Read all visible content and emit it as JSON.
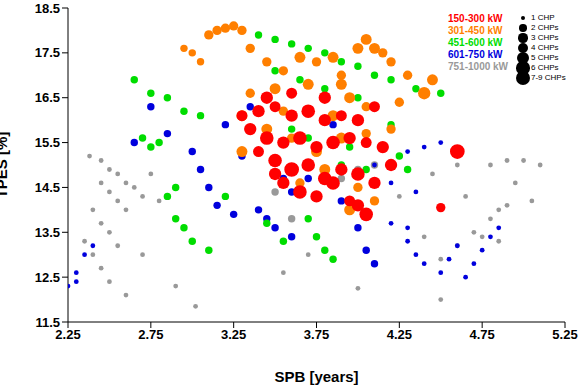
{
  "chart_data": {
    "type": "scatter",
    "x_label": "SPB [years]",
    "y_label": "TPES [%]",
    "xlim": [
      2.25,
      5.25
    ],
    "xticks": [
      2.25,
      2.75,
      3.25,
      3.75,
      4.25,
      4.75,
      5.25
    ],
    "ylim": [
      11.5,
      18.5
    ],
    "yticks": [
      11.5,
      12.5,
      13.5,
      14.5,
      15.5,
      16.5,
      17.5,
      18.5
    ],
    "grid": false,
    "legend": "upper right",
    "size_range": [
      1,
      7
    ],
    "size_legend": [
      {
        "value": 1,
        "label": "1 CHP"
      },
      {
        "value": 2,
        "label": "2 CHPs"
      },
      {
        "value": 3,
        "label": "3 CHPs"
      },
      {
        "value": 4,
        "label": "4 CHPs"
      },
      {
        "value": 5,
        "label": "5 CHPs"
      },
      {
        "value": 6,
        "label": "6 CHPs"
      },
      {
        "value": 7,
        "label": "7-9 CHPs"
      }
    ],
    "series": [
      {
        "name": "150-300 kW",
        "color": "#ff0000",
        "marker": "circle",
        "x": [
          3.3,
          3.4,
          3.5,
          3.6,
          3.7,
          3.8,
          3.9,
          4.0,
          3.35,
          3.45,
          3.55,
          3.65,
          3.75,
          3.85,
          3.95,
          4.05,
          4.15,
          3.5,
          3.6,
          3.7,
          3.8,
          3.9,
          4.0,
          4.1,
          3.55,
          3.65,
          3.75,
          3.85,
          3.95,
          4.0,
          4.05,
          3.5,
          3.4,
          4.2,
          4.5,
          4.6,
          3.6,
          3.8,
          4.1,
          3.45
        ],
        "values": [
          16.1,
          16.2,
          16.3,
          16.1,
          16.2,
          16.0,
          16.1,
          16.0,
          15.8,
          15.6,
          15.5,
          15.6,
          15.4,
          15.5,
          15.6,
          15.5,
          15.4,
          15.1,
          14.9,
          15.0,
          14.7,
          14.9,
          14.8,
          14.6,
          14.6,
          14.4,
          14.3,
          14.6,
          14.2,
          14.1,
          13.9,
          14.8,
          15.3,
          15.0,
          14.05,
          15.3,
          16.6,
          16.5,
          16.3,
          16.5
        ],
        "sizes": [
          4,
          5,
          4,
          5,
          6,
          5,
          4,
          5,
          5,
          6,
          5,
          6,
          5,
          6,
          5,
          4,
          5,
          6,
          7,
          6,
          6,
          5,
          6,
          5,
          5,
          6,
          5,
          6,
          4,
          5,
          6,
          5,
          4,
          5,
          3,
          7,
          4,
          5,
          4,
          5
        ]
      },
      {
        "name": "301-450 kW",
        "color": "#ff7f00",
        "marker": "circle",
        "x": [
          3.1,
          3.15,
          3.2,
          3.25,
          3.3,
          2.95,
          3.0,
          3.05,
          3.35,
          3.45,
          3.55,
          3.65,
          3.75,
          3.85,
          3.9,
          4.05,
          4.1,
          4.15,
          4.2,
          4.3,
          4.45,
          3.35,
          3.5,
          3.7,
          3.95,
          4.05,
          4.25,
          4.4,
          3.3,
          3.45,
          3.6,
          3.75,
          3.9,
          4.05,
          4.2,
          3.85,
          3.55,
          3.65,
          3.8,
          4.0,
          4.1,
          3.95,
          3.3,
          3.9,
          4.0
        ],
        "values": [
          17.9,
          18.0,
          18.05,
          18.1,
          18.0,
          17.6,
          17.5,
          17.3,
          17.6,
          17.3,
          17.1,
          17.4,
          17.3,
          17.4,
          17.0,
          17.8,
          17.6,
          17.5,
          17.3,
          17.0,
          16.9,
          16.6,
          16.7,
          16.8,
          16.5,
          16.3,
          16.4,
          16.6,
          16.1,
          15.8,
          15.6,
          15.3,
          15.6,
          15.7,
          15.8,
          16.1,
          16.2,
          14.6,
          14.9,
          14.5,
          14.2,
          14.0,
          15.3,
          16.8,
          17.6
        ],
        "sizes": [
          3,
          3,
          3,
          3,
          3,
          2,
          2,
          2,
          3,
          3,
          3,
          4,
          3,
          4,
          3,
          4,
          4,
          3,
          3,
          3,
          4,
          3,
          4,
          4,
          4,
          3,
          3,
          5,
          4,
          4,
          3,
          4,
          4,
          3,
          3,
          4,
          3,
          3,
          4,
          3,
          3,
          4,
          4,
          4,
          4
        ]
      },
      {
        "name": "451-600 kW",
        "color": "#00dd00",
        "marker": "circle",
        "x": [
          2.65,
          2.75,
          2.85,
          2.95,
          3.05,
          2.7,
          2.75,
          2.8,
          2.85,
          2.9,
          2.95,
          3.0,
          3.1,
          2.9,
          3.2,
          3.45,
          3.55,
          3.7,
          3.75,
          3.8,
          3.85,
          3.3,
          3.4,
          3.5,
          3.6,
          3.7,
          3.8,
          3.9,
          4.0,
          4.1,
          4.2,
          4.35,
          4.5,
          3.5,
          3.65,
          3.8,
          4.0,
          4.2,
          4.0,
          3.95,
          4.05,
          3.6,
          3.7,
          3.9,
          4.25,
          4.3
        ],
        "values": [
          16.9,
          16.6,
          16.5,
          16.2,
          16.1,
          15.6,
          15.4,
          15.5,
          14.3,
          14.5,
          13.6,
          13.3,
          13.1,
          13.8,
          14.3,
          13.7,
          13.3,
          13.8,
          13.4,
          13.1,
          12.9,
          18.0,
          17.9,
          17.8,
          17.7,
          17.6,
          17.5,
          17.3,
          17.2,
          17.0,
          16.9,
          16.7,
          16.6,
          17.1,
          16.9,
          16.7,
          16.5,
          15.9,
          16.0,
          15.4,
          14.9,
          15.8,
          15.6,
          15.0,
          15.2,
          14.9
        ],
        "sizes": [
          2,
          2,
          2,
          2,
          2,
          2,
          2,
          2,
          2,
          2,
          2,
          2,
          2,
          2,
          2,
          2,
          2,
          2,
          2,
          2,
          2,
          2,
          2,
          2,
          2,
          2,
          2,
          2,
          2,
          2,
          2,
          2,
          2,
          2,
          2,
          2,
          2,
          2,
          2,
          2,
          2,
          2,
          2,
          2,
          2,
          2
        ]
      },
      {
        "name": "601-750 kW",
        "color": "#0000dd",
        "marker": "circle",
        "x": [
          2.25,
          2.3,
          2.35,
          2.4,
          2.3,
          2.65,
          2.75,
          2.85,
          3.0,
          3.05,
          3.1,
          3.15,
          3.2,
          3.3,
          3.35,
          3.45,
          3.5,
          3.55,
          3.6,
          3.7,
          3.75,
          3.85,
          3.9,
          4.0,
          4.05,
          4.1,
          3.4,
          3.45,
          3.5,
          3.6,
          3.25,
          4.2,
          4.3,
          4.35,
          4.4,
          4.5,
          4.55,
          4.6,
          4.65,
          4.7,
          4.75,
          4.8,
          4.85,
          4.2,
          4.3,
          4.4,
          4.5,
          4.35,
          4.3,
          4.15,
          4.1
        ],
        "values": [
          12.3,
          12.6,
          13.0,
          13.2,
          12.4,
          15.5,
          16.3,
          15.7,
          15.3,
          14.9,
          14.5,
          14.1,
          15.9,
          15.2,
          16.3,
          15.7,
          15.1,
          14.7,
          14.4,
          14.7,
          15.4,
          15.9,
          14.2,
          13.6,
          13.1,
          12.8,
          14.0,
          13.8,
          13.6,
          13.4,
          13.9,
          13.7,
          13.3,
          13.0,
          12.8,
          12.6,
          12.9,
          13.2,
          12.5,
          12.8,
          13.1,
          13.4,
          13.6,
          14.6,
          15.3,
          15.4,
          15.5,
          14.4,
          13.6,
          15.4,
          15.0
        ],
        "sizes": [
          1,
          1,
          1,
          1,
          1,
          2,
          2,
          2,
          2,
          2,
          2,
          2,
          2,
          2,
          2,
          2,
          2,
          2,
          2,
          2,
          2,
          2,
          2,
          2,
          2,
          2,
          2,
          2,
          2,
          2,
          2,
          1,
          1,
          1,
          1,
          1,
          1,
          1,
          1,
          1,
          1,
          1,
          1,
          1,
          1,
          1,
          1,
          1,
          1,
          1,
          1
        ]
      },
      {
        "name": "751-1000 kW",
        "color": "#999999",
        "marker": "circle",
        "x": [
          2.38,
          2.45,
          2.5,
          2.55,
          2.6,
          2.65,
          2.7,
          2.45,
          2.5,
          2.55,
          2.6,
          2.4,
          2.45,
          2.5,
          2.55,
          2.35,
          2.4,
          2.45,
          2.5,
          2.6,
          2.7,
          2.75,
          2.8,
          2.9,
          3.02,
          3.5,
          3.6,
          3.75,
          3.9,
          4.0,
          4.1,
          3.55,
          3.7,
          4.0,
          4.5,
          4.25,
          4.45,
          4.6,
          4.8,
          4.9,
          5.0,
          5.1,
          4.95,
          5.05,
          4.85,
          4.5,
          4.6,
          4.7,
          4.8,
          4.85,
          4.9,
          4.75,
          4.4,
          4.65
        ],
        "values": [
          15.2,
          15.1,
          14.9,
          14.8,
          14.6,
          14.5,
          14.3,
          14.6,
          14.4,
          14.2,
          14.0,
          14.0,
          13.7,
          13.5,
          13.2,
          13.3,
          13.0,
          12.7,
          12.4,
          12.1,
          13.0,
          14.8,
          14.2,
          12.3,
          11.85,
          14.4,
          13.8,
          14.3,
          14.7,
          14.9,
          15.0,
          12.6,
          13.0,
          12.25,
          12.0,
          14.3,
          14.8,
          15.0,
          15.0,
          15.1,
          15.1,
          15.0,
          14.6,
          14.2,
          13.3,
          12.9,
          13.2,
          13.5,
          13.8,
          14.0,
          14.1,
          13.4,
          13.4,
          14.3
        ],
        "sizes": [
          1,
          1,
          1,
          1,
          1,
          1,
          1,
          1,
          1,
          1,
          1,
          1,
          1,
          1,
          1,
          1,
          1,
          1,
          1,
          1,
          1,
          1,
          1,
          1,
          1,
          2,
          2,
          2,
          2,
          2,
          2,
          1,
          1,
          1,
          1,
          1,
          1,
          1,
          1,
          1,
          1,
          1,
          1,
          1,
          1,
          1,
          1,
          1,
          1,
          1,
          1,
          1,
          1,
          1
        ]
      }
    ]
  }
}
